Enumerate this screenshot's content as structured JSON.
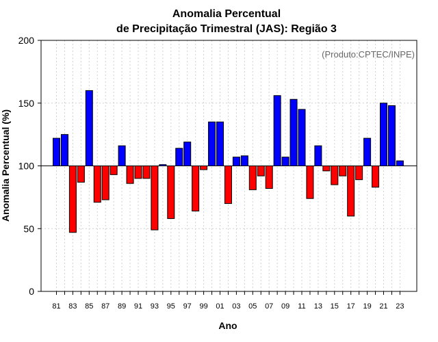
{
  "colors": {
    "above": "#0000ff",
    "below": "#ff0000",
    "grid": "#d0d0d0",
    "credit": "#666666"
  },
  "chart_data": {
    "type": "bar",
    "title_line1": "Anomalia Percentual",
    "title_line2": "de Precipitação Trimestral (JAS): Região 3",
    "xlabel": "Ano",
    "ylabel": "Anomalia Percentual (%)",
    "credit": "(Produto:CPTEC/INPE)",
    "ylim": [
      0,
      200
    ],
    "yticks": [
      0,
      50,
      100,
      150,
      200
    ],
    "baseline": 100,
    "grid": true,
    "categories": [
      "81",
      "82",
      "83",
      "84",
      "85",
      "86",
      "87",
      "88",
      "89",
      "90",
      "91",
      "92",
      "93",
      "94",
      "95",
      "96",
      "97",
      "98",
      "99",
      "00",
      "01",
      "02",
      "03",
      "04",
      "05",
      "06",
      "07",
      "08",
      "09",
      "10",
      "11",
      "12",
      "13",
      "14",
      "15",
      "16",
      "17",
      "18",
      "19",
      "20",
      "21",
      "22",
      "23"
    ],
    "tick_labels": [
      "81",
      "83",
      "85",
      "87",
      "89",
      "91",
      "93",
      "95",
      "97",
      "99",
      "01",
      "03",
      "05",
      "07",
      "09",
      "11",
      "13",
      "15",
      "17",
      "19",
      "21",
      "23"
    ],
    "values": [
      122,
      125,
      47,
      87,
      160,
      71,
      73,
      93,
      116,
      86,
      90,
      90,
      49,
      101,
      58,
      114,
      119,
      64,
      97,
      135,
      135,
      70,
      107,
      108,
      81,
      92,
      82,
      156,
      107,
      153,
      145,
      74,
      116,
      96,
      85,
      92,
      60,
      89,
      122,
      83,
      150,
      148,
      104
    ]
  }
}
